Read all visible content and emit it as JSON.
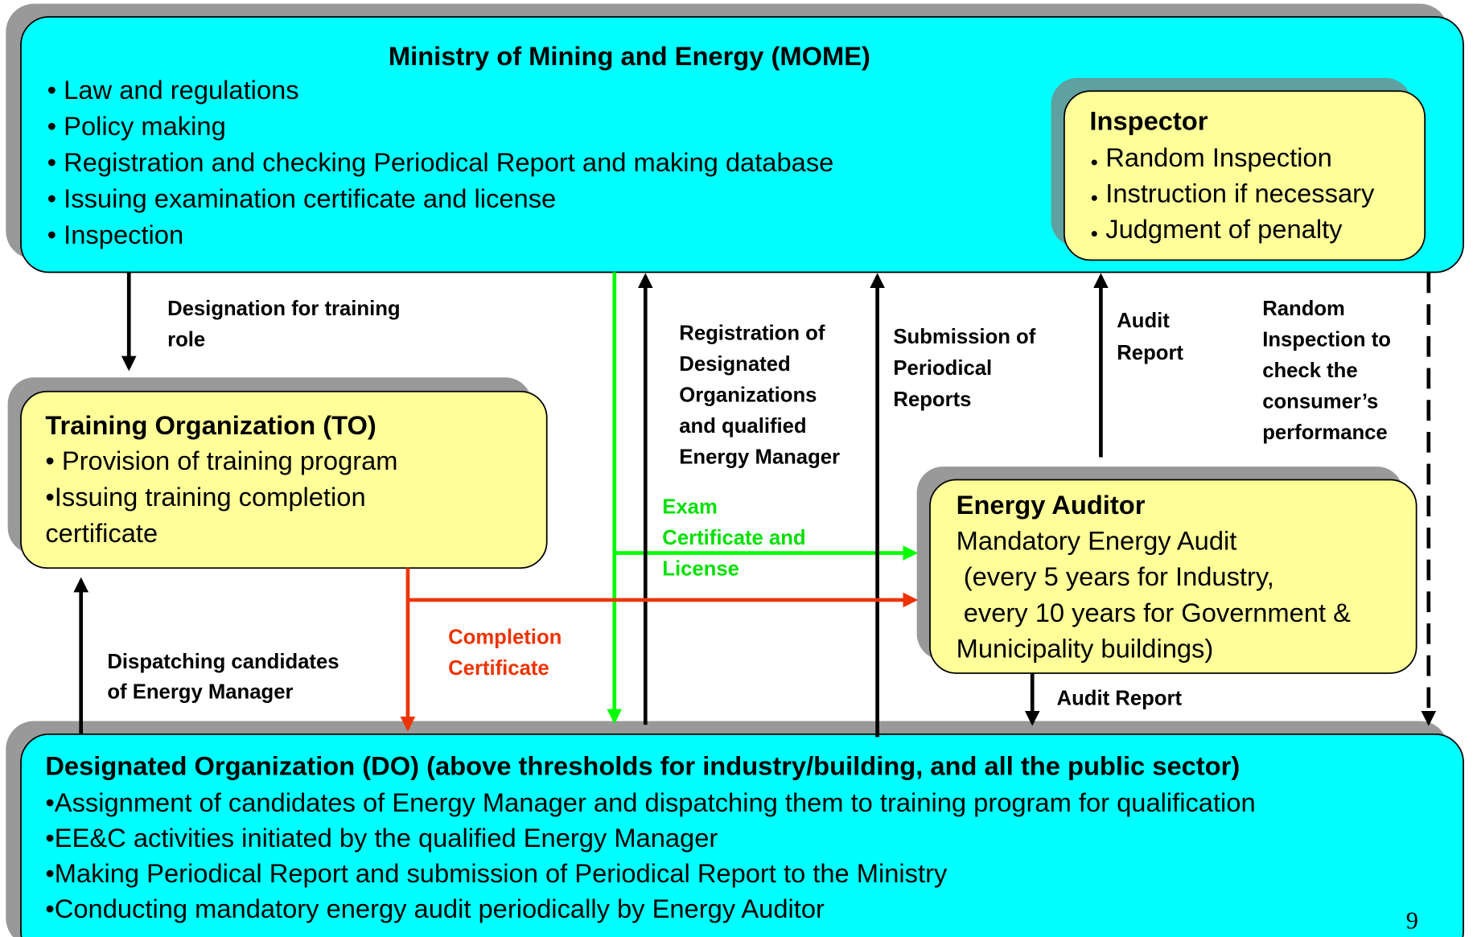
{
  "mome": {
    "title": "Ministry of Mining and Energy (MOME)",
    "items": [
      "• Law and regulations",
      "• Policy making",
      "• Registration and checking Periodical Report and making database",
      "• Issuing examination certificate and license",
      "• Inspection"
    ]
  },
  "inspector": {
    "title": "Inspector",
    "items": [
      "Random Inspection",
      "Instruction if necessary",
      "Judgment of penalty"
    ]
  },
  "training": {
    "title": "Training Organization (TO)",
    "lines": [
      "• Provision of training program",
      "•Issuing training completion",
      "certificate"
    ]
  },
  "auditor": {
    "title": "Energy Auditor",
    "lines": [
      "Mandatory Energy Audit",
      " (every 5 years for Industry,",
      " every 10 years for Government &",
      "Municipality buildings)"
    ]
  },
  "designated": {
    "title": "Designated Organization (DO) (above thresholds for industry/building, and all the public sector)",
    "lines": [
      "•Assignment of candidates of Energy Manager and dispatching them to training program for qualification",
      "•EE&C activities initiated by the qualified Energy Manager",
      "•Making Periodical Report and submission of Periodical Report to the Ministry",
      "•Conducting mandatory energy audit periodically by Energy Auditor"
    ]
  },
  "edges": {
    "designation": [
      "Designation for training",
      "role"
    ],
    "registration": [
      "Registration of",
      "Designated",
      "Organizations",
      "and qualified",
      "Energy Manager"
    ],
    "submission": [
      "Submission of",
      "Periodical",
      "Reports"
    ],
    "audit_report_up": [
      "Audit",
      "Report"
    ],
    "random_inspection": [
      "Random",
      "Inspection to",
      "check the",
      "consumer’s",
      "performance"
    ],
    "exam_certificate": [
      "Exam",
      "Certificate and",
      "License"
    ],
    "completion_certificate": [
      "Completion",
      "Certificate"
    ],
    "dispatching": [
      "Dispatching candidates",
      "of Energy Manager"
    ],
    "audit_report_down": [
      "Audit Report"
    ]
  },
  "page_number": "9"
}
